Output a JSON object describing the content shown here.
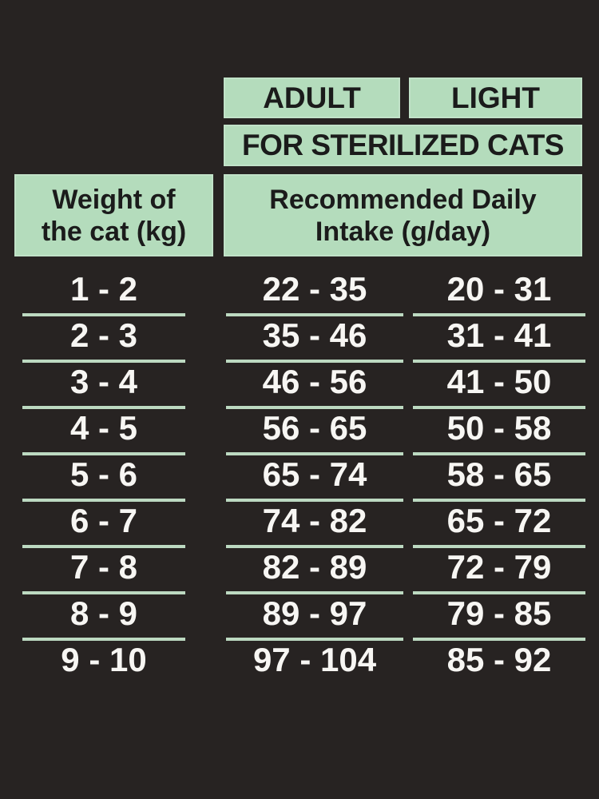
{
  "colors": {
    "background": "#272322",
    "box_green": "#b4dcbc",
    "box_text": "#1b1b1b",
    "row_text": "#f7f6f3",
    "separator_line": "#bcd9c1"
  },
  "header": {
    "adult_label": "ADULT",
    "light_label": "LIGHT",
    "subtitle": "FOR STERILIZED CATS",
    "weight_line1": "Weight of",
    "weight_line2": "the cat (kg)",
    "intake_line1": "Recommended Daily",
    "intake_line2": "Intake (g/day)"
  },
  "chart_data": {
    "type": "table",
    "title": "FOR STERILIZED CATS",
    "columns": [
      "Weight of the cat (kg)",
      "ADULT — Recommended Daily Intake (g/day)",
      "LIGHT — Recommended Daily Intake (g/day)"
    ],
    "rows": [
      {
        "weight": "1 - 2",
        "adult": "22 - 35",
        "light": "20 - 31"
      },
      {
        "weight": "2 - 3",
        "adult": "35 - 46",
        "light": "31 - 41"
      },
      {
        "weight": "3 - 4",
        "adult": "46 - 56",
        "light": "41 - 50"
      },
      {
        "weight": "4 - 5",
        "adult": "56 - 65",
        "light": "50 - 58"
      },
      {
        "weight": "5 - 6",
        "adult": "65 - 74",
        "light": "58 - 65"
      },
      {
        "weight": "6 - 7",
        "adult": "74 - 82",
        "light": "65 - 72"
      },
      {
        "weight": "7 - 8",
        "adult": "82 - 89",
        "light": "72 - 79"
      },
      {
        "weight": "8 - 9",
        "adult": "89 - 97",
        "light": "79 - 85"
      },
      {
        "weight": "9 - 10",
        "adult": "97 - 104",
        "light": "85 - 92"
      }
    ]
  }
}
